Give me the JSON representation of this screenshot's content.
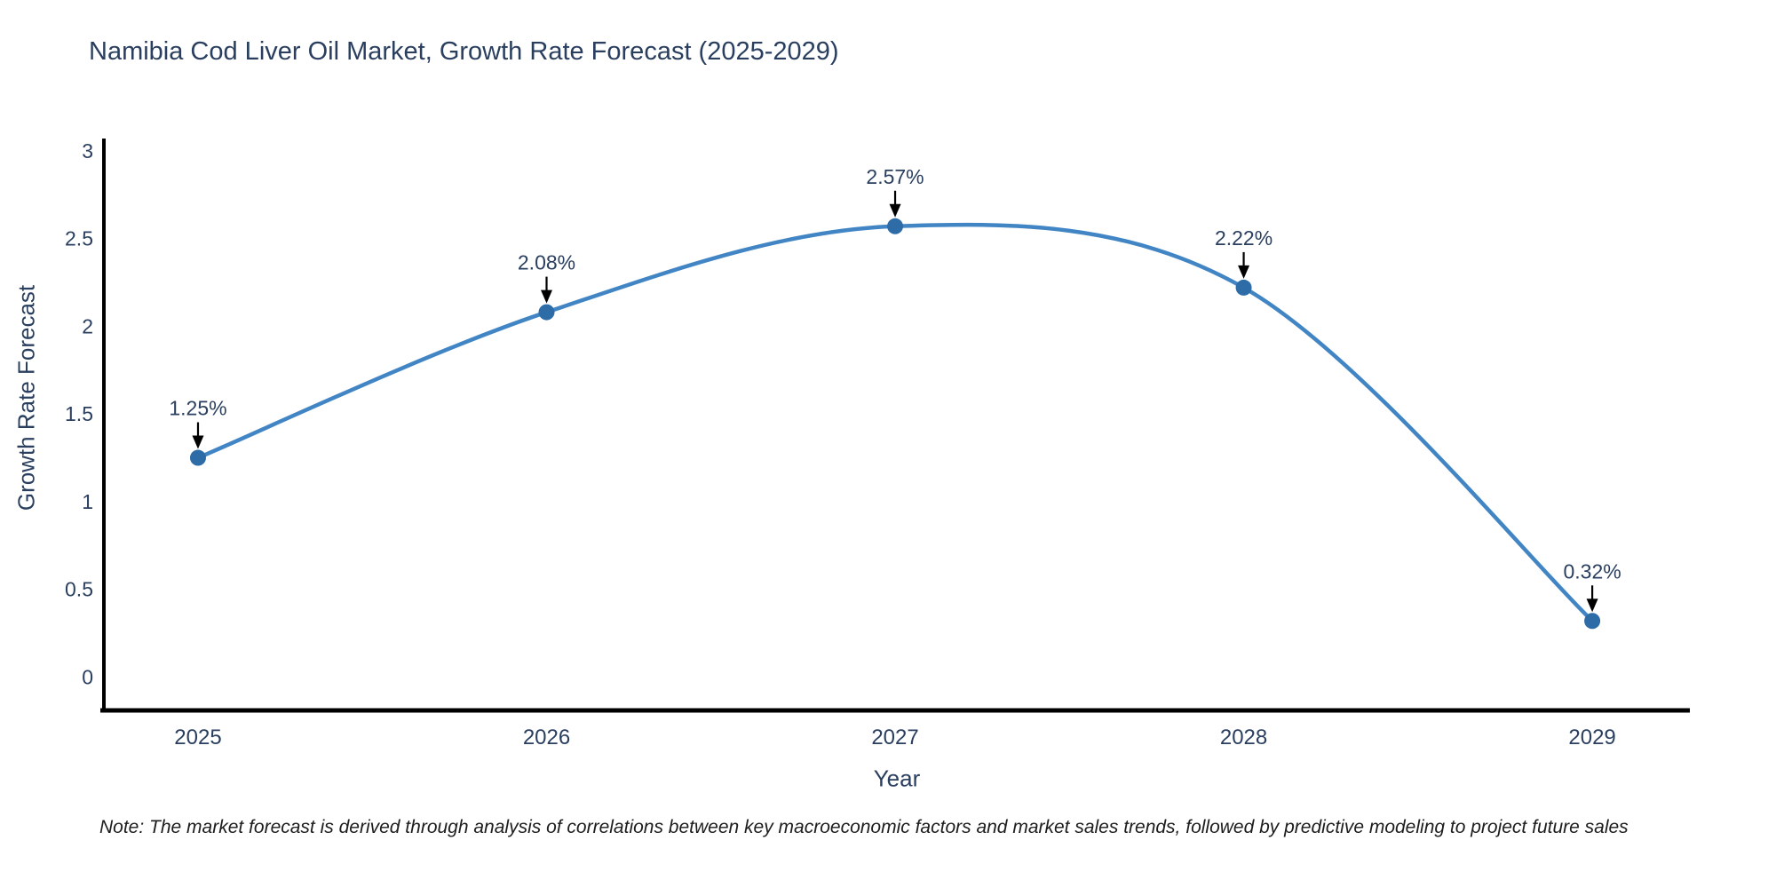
{
  "chart_data": {
    "type": "line",
    "title": "Namibia Cod Liver Oil Market, Growth Rate Forecast (2025-2029)",
    "xlabel": "Year",
    "ylabel": "Growth Rate Forecast",
    "x": [
      2025,
      2026,
      2027,
      2028,
      2029
    ],
    "values": [
      1.25,
      2.08,
      2.57,
      2.22,
      0.32
    ],
    "point_labels": [
      "1.25%",
      "2.08%",
      "2.57%",
      "2.22%",
      "0.32%"
    ],
    "xticks": [
      2025,
      2026,
      2027,
      2028,
      2029
    ],
    "yticks": [
      0,
      0.5,
      1,
      1.5,
      2,
      2.5,
      3
    ],
    "xlim": [
      2024.73,
      2029.28
    ],
    "ylim": [
      -0.19,
      3.07
    ],
    "line_shape": "spline",
    "grid": false,
    "legend": "none",
    "colors": {
      "line": "#4285c4",
      "marker": "#2e6ca8",
      "arrow": "#000000",
      "axis": "#000000",
      "tick_text": "#2a3f5f",
      "annotation_text": "#2a3f5f"
    }
  },
  "footnote": "Note: The market forecast is derived through analysis of correlations between key macroeconomic factors and market sales trends, followed by predictive modeling to project future sales"
}
